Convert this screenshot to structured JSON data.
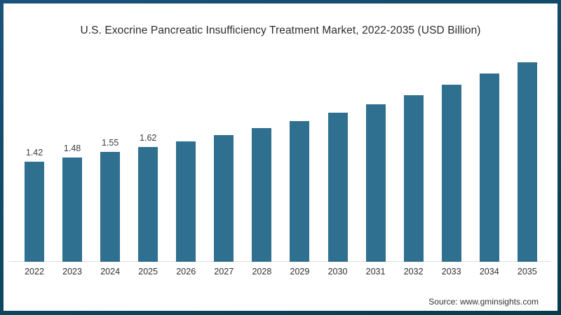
{
  "title": "U.S. Exocrine Pancreatic Insufficiency Treatment Market, 2022-2035 (USD Billion)",
  "source": "Source: www.gminsights.com",
  "colors": {
    "bar": "#2f6f8f",
    "border_gradient_start": "#1a527c",
    "border_gradient_end": "#053c4c",
    "axis_line": "#dedede",
    "title_text": "#2b2b2b",
    "label_text": "#3d3d3d"
  },
  "chart_data": {
    "type": "bar",
    "title": "U.S. Exocrine Pancreatic Insufficiency Treatment Market, 2022-2035 (USD Billion)",
    "categories": [
      "2022",
      "2023",
      "2024",
      "2025",
      "2026",
      "2027",
      "2028",
      "2029",
      "2030",
      "2031",
      "2032",
      "2033",
      "2034",
      "2035"
    ],
    "values": [
      1.42,
      1.48,
      1.55,
      1.62,
      1.7,
      1.79,
      1.89,
      1.99,
      2.11,
      2.23,
      2.36,
      2.5,
      2.66,
      2.82
    ],
    "data_labels": [
      "1.42",
      "1.48",
      "1.55",
      "1.62",
      "",
      "",
      "",
      "",
      "",
      "",
      "",
      "",
      "",
      ""
    ],
    "xlabel": "",
    "ylabel": "",
    "ylim": [
      0,
      3.11
    ],
    "grid": false,
    "legend": false,
    "bar_color": "#2f6f8f",
    "annotation": "Source: www.gminsights.com"
  }
}
